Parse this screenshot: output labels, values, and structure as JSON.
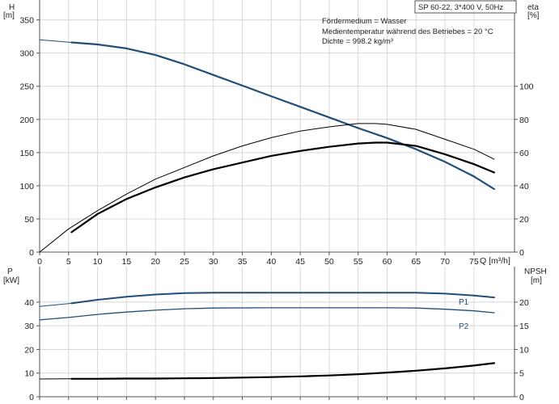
{
  "chart_data": [
    {
      "type": "line",
      "panel": "head-efficiency",
      "title_box": "SP 60-22, 3*400 V, 50Hz",
      "info_lines": [
        "Fördermedium = Wasser",
        "Medientemperatur während des Betriebes = 20 °C",
        "Dichte = 998.2 kg/m³"
      ],
      "xlabel": "Q [m³/h]",
      "ylabel_left": [
        "H",
        "[m]"
      ],
      "ylabel_right": [
        "eta",
        "[%]"
      ],
      "xlim": [
        0,
        82
      ],
      "ylim_left": [
        0,
        350
      ],
      "ylim_right": [
        0,
        140
      ],
      "x_ticks": [
        0,
        5,
        10,
        15,
        20,
        25,
        30,
        35,
        40,
        45,
        50,
        55,
        60,
        65,
        70,
        75
      ],
      "y_ticks_left": [
        0,
        50,
        100,
        150,
        200,
        250,
        300,
        350
      ],
      "y_ticks_right": [
        0,
        20,
        40,
        60,
        80,
        100
      ],
      "grid": true,
      "series": [
        {
          "axis": "left",
          "color": "#1f4e79",
          "width": 2.2,
          "points": [
            [
              5.5,
              316
            ],
            [
              10,
              313
            ],
            [
              15,
              307
            ],
            [
              20,
              297
            ],
            [
              25,
              283
            ],
            [
              30,
              267
            ],
            [
              35,
              251
            ],
            [
              40,
              235
            ],
            [
              45,
              219
            ],
            [
              50,
              203
            ],
            [
              55,
              187
            ],
            [
              60,
              172
            ],
            [
              65,
              155
            ],
            [
              70,
              136
            ],
            [
              75,
              114
            ],
            [
              78.5,
              95
            ]
          ]
        },
        {
          "axis": "left",
          "color": "#1f4e79",
          "width": 1,
          "points": [
            [
              0,
              320
            ],
            [
              5.5,
              316
            ]
          ]
        },
        {
          "axis": "right",
          "color": "#000000",
          "width": 2.2,
          "points": [
            [
              5.5,
              12
            ],
            [
              10,
              23
            ],
            [
              15,
              32
            ],
            [
              20,
              39
            ],
            [
              25,
              45
            ],
            [
              30,
              50
            ],
            [
              35,
              54
            ],
            [
              40,
              58
            ],
            [
              45,
              61
            ],
            [
              50,
              63.5
            ],
            [
              55,
              65.5
            ],
            [
              58,
              66
            ],
            [
              60,
              66
            ],
            [
              65,
              64
            ],
            [
              70,
              59
            ],
            [
              75,
              53
            ],
            [
              78.5,
              48
            ]
          ]
        },
        {
          "axis": "right",
          "color": "#000000",
          "width": 1,
          "points": [
            [
              0,
              0
            ],
            [
              5,
              14
            ],
            [
              10,
              25
            ],
            [
              15,
              35
            ],
            [
              20,
              44
            ],
            [
              25,
              51
            ],
            [
              30,
              58
            ],
            [
              35,
              64
            ],
            [
              40,
              69
            ],
            [
              45,
              73
            ],
            [
              50,
              75.5
            ],
            [
              55,
              77.5
            ],
            [
              58,
              77.5
            ],
            [
              60,
              77
            ],
            [
              65,
              74
            ],
            [
              70,
              68
            ],
            [
              75,
              62
            ],
            [
              78.5,
              56
            ]
          ]
        }
      ]
    },
    {
      "type": "line",
      "panel": "power-npsh",
      "ylabel_left": [
        "P",
        "[kW]"
      ],
      "ylabel_right": [
        "NPSH",
        "[m]"
      ],
      "xlim": [
        0,
        82
      ],
      "ylim_left": [
        0,
        50
      ],
      "ylim_right": [
        0,
        25
      ],
      "y_ticks_left": [
        0,
        10,
        20,
        30,
        40
      ],
      "y_ticks_right": [
        0,
        5,
        10,
        15,
        20
      ],
      "grid": true,
      "series": [
        {
          "name": "P1",
          "axis": "left",
          "color": "#1f4e79",
          "width": 2,
          "points": [
            [
              5.5,
              39.5
            ],
            [
              10,
              41
            ],
            [
              15,
              42.3
            ],
            [
              20,
              43.2
            ],
            [
              25,
              43.8
            ],
            [
              30,
              44
            ],
            [
              40,
              44
            ],
            [
              50,
              44
            ],
            [
              60,
              44
            ],
            [
              65,
              44
            ],
            [
              70,
              43.6
            ],
            [
              75,
              42.8
            ],
            [
              78.5,
              42
            ]
          ]
        },
        {
          "name": "",
          "axis": "left",
          "color": "#1f4e79",
          "width": 1,
          "points": [
            [
              0,
              38.2
            ],
            [
              5.5,
              39.5
            ]
          ]
        },
        {
          "name": "P2",
          "axis": "left",
          "color": "#1f4e79",
          "width": 1.3,
          "points": [
            [
              0,
              32.5
            ],
            [
              5,
              33.5
            ],
            [
              10,
              34.8
            ],
            [
              15,
              35.8
            ],
            [
              20,
              36.6
            ],
            [
              25,
              37.2
            ],
            [
              30,
              37.5
            ],
            [
              40,
              37.6
            ],
            [
              50,
              37.6
            ],
            [
              60,
              37.6
            ],
            [
              65,
              37.5
            ],
            [
              70,
              37
            ],
            [
              75,
              36.3
            ],
            [
              78.5,
              35.5
            ]
          ]
        },
        {
          "name": "",
          "axis": "right",
          "color": "#000000",
          "width": 2.2,
          "points": [
            [
              5.5,
              3.8
            ],
            [
              10,
              3.8
            ],
            [
              15,
              3.85
            ],
            [
              20,
              3.85
            ],
            [
              25,
              3.9
            ],
            [
              30,
              3.95
            ],
            [
              35,
              4.05
            ],
            [
              40,
              4.15
            ],
            [
              45,
              4.3
            ],
            [
              50,
              4.5
            ],
            [
              55,
              4.75
            ],
            [
              60,
              5.1
            ],
            [
              65,
              5.5
            ],
            [
              70,
              6.0
            ],
            [
              75,
              6.6
            ],
            [
              78.5,
              7.1
            ]
          ]
        },
        {
          "name": "",
          "axis": "right",
          "color": "#000000",
          "width": 1,
          "points": [
            [
              0,
              3.75
            ],
            [
              5.5,
              3.8
            ]
          ]
        }
      ]
    }
  ]
}
